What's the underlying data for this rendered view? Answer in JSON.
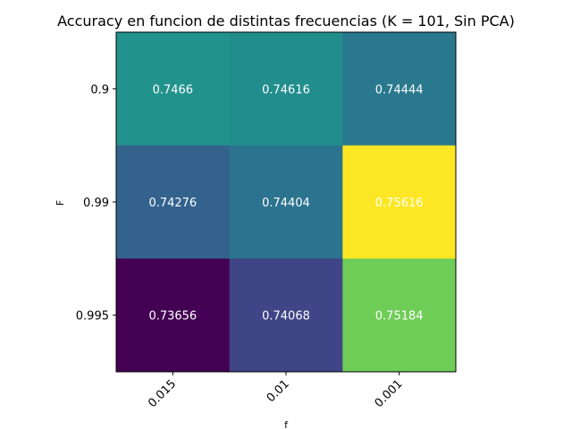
{
  "chart_data": {
    "type": "heatmap",
    "title": "Accuracy en funcion de distintas frecuencias (K = 101, Sin PCA)",
    "xlabel": "f",
    "ylabel": "F",
    "x_categories": [
      "0.015",
      "0.01",
      "0.001"
    ],
    "y_categories": [
      "0.9",
      "0.99",
      "0.995"
    ],
    "values": [
      [
        0.7466,
        0.74616,
        0.74444
      ],
      [
        0.74276,
        0.74404,
        0.75616
      ],
      [
        0.73656,
        0.74068,
        0.75184
      ]
    ],
    "labels": [
      [
        "0.7466",
        "0.74616",
        "0.74444"
      ],
      [
        "0.74276",
        "0.74404",
        "0.75616"
      ],
      [
        "0.73656",
        "0.74068",
        "0.75184"
      ]
    ],
    "colormap": "viridis",
    "colorbar": false,
    "grid": false,
    "x_tick_rotation": 45
  }
}
